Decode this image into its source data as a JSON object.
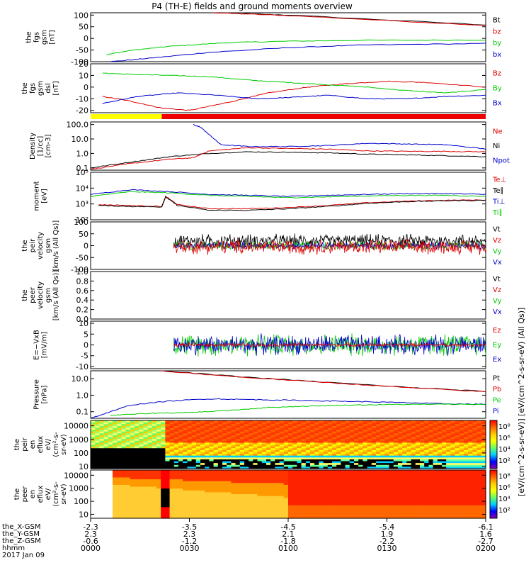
{
  "title": "P4 (TH-E) fields and ground moments overview",
  "chart_data": [
    {
      "type": "line",
      "id": "fgs_gsm",
      "ylabel": [
        "the",
        "fgs",
        "gsm",
        "[nT]"
      ],
      "yticks": [
        100,
        50,
        0,
        -50,
        -100
      ],
      "ylim": [
        -100,
        110
      ],
      "legend": [
        {
          "name": "Bt",
          "color": "#000000"
        },
        {
          "name": "bz",
          "color": "#dd0000"
        },
        {
          "name": "by",
          "color": "#00cc00"
        },
        {
          "name": "bx",
          "color": "#0000cc"
        }
      ],
      "series": [
        {
          "name": "Bt",
          "color": "#000000",
          "x": [
            0.31,
            0.5,
            1.0
          ],
          "y": [
            110,
            100,
            58
          ]
        },
        {
          "name": "bz",
          "color": "#dd0000",
          "x": [
            0.31,
            0.5,
            1.0
          ],
          "y": [
            110,
            98,
            56
          ]
        },
        {
          "name": "by",
          "color": "#00cc00",
          "x": [
            0.04,
            0.1,
            0.2,
            0.35,
            0.5,
            0.7,
            1.0
          ],
          "y": [
            -70,
            -52,
            -34,
            -18,
            -12,
            -8,
            -7
          ]
        },
        {
          "name": "bx",
          "color": "#0000cc",
          "x": [
            0.05,
            0.15,
            0.3,
            0.5,
            0.7,
            1.0
          ],
          "y": [
            -100,
            -85,
            -60,
            -40,
            -28,
            -22
          ]
        }
      ]
    },
    {
      "type": "line",
      "id": "fgs_dsl",
      "ylabel": [
        "the",
        "fgs",
        "gsm",
        "dsl",
        "[nT]"
      ],
      "yticks": [
        20,
        10,
        0,
        -10,
        -20
      ],
      "ylim": [
        -22,
        20
      ],
      "legend": [
        {
          "name": "Bz",
          "color": "#dd0000"
        },
        {
          "name": "By",
          "color": "#00cc00"
        },
        {
          "name": "Bx",
          "color": "#0000cc"
        }
      ],
      "series": [
        {
          "name": "Bz",
          "color": "#dd0000",
          "x": [
            0.03,
            0.1,
            0.18,
            0.25,
            0.35,
            0.45,
            0.55,
            0.65,
            0.75,
            0.85,
            1.0
          ],
          "y": [
            -8,
            -12,
            -18,
            -20,
            -13,
            -5,
            0,
            3,
            5,
            4,
            0
          ]
        },
        {
          "name": "By",
          "color": "#00cc00",
          "x": [
            0.03,
            0.1,
            0.2,
            0.3,
            0.4,
            0.5,
            0.6,
            0.7,
            0.8,
            0.9,
            1.0
          ],
          "y": [
            12,
            11,
            10,
            9,
            6,
            4,
            2,
            0,
            -3,
            -5,
            -2
          ]
        },
        {
          "name": "Bx",
          "color": "#0000cc",
          "x": [
            0.03,
            0.12,
            0.22,
            0.32,
            0.42,
            0.5,
            0.6,
            0.7,
            0.8,
            0.9,
            1.0
          ],
          "y": [
            -14,
            -8,
            -5,
            -7,
            -10,
            -9,
            -7,
            -10,
            -10,
            -8,
            -7
          ]
        }
      ]
    },
    {
      "type": "bar",
      "id": "mode_bar",
      "segments": [
        {
          "to": 0.18,
          "color": "#ffff00"
        },
        {
          "to": 1.0,
          "color": "#ee0000"
        }
      ]
    },
    {
      "type": "line",
      "id": "density",
      "log": true,
      "ylabel": [
        "Density",
        "[1/cc]",
        "[cm-3]"
      ],
      "yticks": [
        100.0,
        10.0,
        1.0,
        0.1
      ],
      "ytick_labels": [
        "100.0",
        "10.0",
        "1.0",
        "0.1"
      ],
      "ylim": [
        0.07,
        150
      ],
      "legend": [
        {
          "name": "Ne",
          "color": "#dd0000"
        },
        {
          "name": "Ni",
          "color": "#000000"
        },
        {
          "name": "Npot",
          "color": "#0000cc"
        }
      ],
      "series": [
        {
          "name": "Ni",
          "color": "#000000",
          "x": [
            0.0,
            0.1,
            0.2,
            0.3,
            0.4,
            0.5,
            0.6,
            0.7,
            0.8,
            0.9,
            1.0
          ],
          "y": [
            0.1,
            0.25,
            0.6,
            1.0,
            1.3,
            1.2,
            1.1,
            0.9,
            0.8,
            0.7,
            0.6
          ]
        },
        {
          "name": "Ne",
          "color": "#dd0000",
          "x": [
            0.0,
            0.1,
            0.2,
            0.26,
            0.3,
            0.4,
            0.5,
            0.6,
            0.7,
            0.8,
            0.9,
            1.0
          ],
          "y": [
            0.08,
            0.2,
            0.4,
            0.5,
            1.5,
            2.5,
            2.2,
            2.0,
            1.5,
            1.4,
            1.4,
            1.3
          ]
        },
        {
          "name": "Npot",
          "color": "#0000cc",
          "x": [
            0.26,
            0.28,
            0.3,
            0.33,
            0.4,
            0.5,
            0.6,
            0.7,
            0.8,
            0.9,
            1.0
          ],
          "y": [
            100,
            60,
            20,
            4,
            3,
            3,
            3.5,
            5,
            4.5,
            4,
            2
          ]
        }
      ]
    },
    {
      "type": "line",
      "id": "temperature",
      "log": true,
      "ylabel": [
        "moment",
        "[eV]"
      ],
      "yticks": [
        100000,
        10000,
        1000,
        100
      ],
      "ytick_labels": [
        "10⁵",
        "10⁴",
        "10³",
        "10²"
      ],
      "ylim": [
        100,
        100000
      ],
      "legend": [
        {
          "name": "Te⊥",
          "color": "#dd0000"
        },
        {
          "name": "Te∥",
          "color": "#000000"
        },
        {
          "name": "Ti⊥",
          "color": "#0000cc"
        },
        {
          "name": "Ti∥",
          "color": "#00cc00"
        }
      ],
      "series": [
        {
          "name": "Ti⊥",
          "color": "#0000cc",
          "x": [
            0.0,
            0.1,
            0.2,
            0.3,
            0.4,
            0.5,
            0.6,
            0.7,
            0.8,
            0.9,
            1.0
          ],
          "y": [
            4000,
            8000,
            6000,
            4000,
            3500,
            3000,
            3500,
            4000,
            4500,
            4500,
            4000
          ]
        },
        {
          "name": "Ti∥",
          "color": "#00cc00",
          "x": [
            0.0,
            0.1,
            0.2,
            0.3,
            0.4,
            0.5,
            0.6,
            0.7,
            0.8,
            0.9,
            1.0
          ],
          "y": [
            3000,
            6000,
            5000,
            3500,
            3000,
            2500,
            2800,
            3200,
            3500,
            3500,
            3000
          ]
        },
        {
          "name": "Te⊥",
          "color": "#dd0000",
          "x": [
            0.02,
            0.1,
            0.18,
            0.19,
            0.22,
            0.3,
            0.4,
            0.5,
            0.6,
            0.7,
            0.8,
            0.9,
            1.0
          ],
          "y": [
            900,
            800,
            700,
            3000,
            900,
            500,
            500,
            600,
            800,
            1200,
            1500,
            1700,
            1800
          ]
        },
        {
          "name": "Te∥",
          "color": "#000000",
          "x": [
            0.02,
            0.1,
            0.18,
            0.19,
            0.22,
            0.3,
            0.4,
            0.5,
            0.6,
            0.7,
            0.8,
            0.9,
            1.0
          ],
          "y": [
            800,
            700,
            650,
            2800,
            800,
            400,
            400,
            500,
            700,
            1100,
            1400,
            1600,
            1700
          ]
        }
      ]
    },
    {
      "type": "line",
      "id": "peir_velocity",
      "ylabel": [
        "the",
        "peir",
        "velocity",
        "gsm",
        "[km/s (All Qs)]"
      ],
      "yticks": [
        100,
        50,
        0,
        -50,
        -100
      ],
      "ylim": [
        -100,
        100
      ],
      "legend": [
        {
          "name": "Vt",
          "color": "#000000"
        },
        {
          "name": "Vz",
          "color": "#dd0000"
        },
        {
          "name": "Vy",
          "color": "#00cc00"
        },
        {
          "name": "Vx",
          "color": "#0000cc"
        }
      ],
      "noise": [
        {
          "name": "Vt",
          "color": "#000000",
          "from": 0.21,
          "to": 1.0,
          "center": 20,
          "amp": 28
        },
        {
          "name": "Vy",
          "color": "#00cc00",
          "from": 0.21,
          "to": 1.0,
          "center": 0,
          "amp": 18
        },
        {
          "name": "Vx",
          "color": "#0000cc",
          "from": 0.21,
          "to": 1.0,
          "center": 0,
          "amp": 14
        },
        {
          "name": "Vz",
          "color": "#dd0000",
          "from": 0.21,
          "to": 1.0,
          "center": -5,
          "amp": 30
        }
      ]
    },
    {
      "type": "line",
      "id": "peer_velocity",
      "ylabel": [
        "the",
        "peer",
        "velocity",
        "gsm",
        "[km/s (All Qs)]"
      ],
      "yticks": [
        1.0,
        0.8,
        0.6,
        0.4,
        0.2,
        0.0
      ],
      "ytick_labels": [
        "1.0",
        "0.8",
        "0.6",
        "0.4",
        "0.2",
        "0.0"
      ],
      "ylim": [
        0,
        1
      ],
      "legend": [
        {
          "name": "Vt",
          "color": "#000000"
        },
        {
          "name": "Vz",
          "color": "#dd0000"
        },
        {
          "name": "Vy",
          "color": "#00cc00"
        },
        {
          "name": "Vx",
          "color": "#0000cc"
        }
      ],
      "series": []
    },
    {
      "type": "line",
      "id": "efield",
      "ylabel": [
        "E=−VxB",
        "[mV/m]"
      ],
      "yticks": [
        10,
        5,
        0,
        -5,
        -10
      ],
      "ylim": [
        -11,
        11
      ],
      "legend": [
        {
          "name": "Ez",
          "color": "#dd0000"
        },
        {
          "name": "Ey",
          "color": "#00cc00"
        },
        {
          "name": "Ex",
          "color": "#0000cc"
        }
      ],
      "noise": [
        {
          "name": "Ey",
          "color": "#00cc00",
          "from": 0.21,
          "to": 1.0,
          "center": 0,
          "amp": 5
        },
        {
          "name": "Ex",
          "color": "#0000cc",
          "from": 0.21,
          "to": 1.0,
          "center": 0,
          "amp": 4.5
        },
        {
          "name": "Ez",
          "color": "#dd0000",
          "from": 0.21,
          "to": 1.0,
          "center": 0,
          "amp": 0.8
        }
      ]
    },
    {
      "type": "line",
      "id": "pressure",
      "log": true,
      "ylabel": [
        "Pressure",
        "[nPa]"
      ],
      "yticks": [
        10.0,
        1.0,
        0.1
      ],
      "ytick_labels": [
        "10.0",
        "1.0",
        "0.1"
      ],
      "ylim": [
        0.04,
        30
      ],
      "legend": [
        {
          "name": "Pt",
          "color": "#000000"
        },
        {
          "name": "Pb",
          "color": "#dd0000"
        },
        {
          "name": "Pe",
          "color": "#00cc00"
        },
        {
          "name": "Pi",
          "color": "#0000cc"
        }
      ],
      "series": [
        {
          "name": "Pt",
          "color": "#000000",
          "x": [
            0.18,
            0.4,
            0.6,
            0.8,
            1.0
          ],
          "y": [
            30,
            12,
            6,
            3,
            1.7
          ]
        },
        {
          "name": "Pb",
          "color": "#dd0000",
          "x": [
            0.18,
            0.4,
            0.6,
            0.8,
            1.0
          ],
          "y": [
            29,
            11.5,
            5.8,
            2.9,
            1.6
          ]
        },
        {
          "name": "Pi",
          "color": "#0000cc",
          "x": [
            0.0,
            0.05,
            0.1,
            0.2,
            0.3,
            0.4,
            0.5,
            0.6,
            0.7,
            0.8,
            0.9,
            1.0
          ],
          "y": [
            0.04,
            0.1,
            0.25,
            0.45,
            0.6,
            0.55,
            0.5,
            0.45,
            0.4,
            0.35,
            0.3,
            0.28
          ]
        },
        {
          "name": "Pe",
          "color": "#00cc00",
          "x": [
            0.05,
            0.15,
            0.25,
            0.35,
            0.45,
            0.55,
            0.65,
            0.75,
            0.85,
            1.0
          ],
          "y": [
            0.06,
            0.08,
            0.09,
            0.12,
            0.18,
            0.22,
            0.25,
            0.27,
            0.28,
            0.28
          ]
        }
      ]
    },
    {
      "type": "heatmap",
      "id": "peir_eflux",
      "log": true,
      "ylabel": [
        "the",
        "peir",
        "en",
        "eflux",
        "eV/",
        "(cm²-s-",
        "sr-eV)"
      ],
      "yticks": [
        10000,
        1000,
        100,
        10
      ],
      "ytick_labels": [
        "10000",
        "1000",
        "100",
        "10"
      ],
      "ylim": [
        7,
        25000
      ]
    },
    {
      "type": "heatmap",
      "id": "peer_eflux",
      "log": true,
      "ylabel": [
        "the",
        "peer",
        "en",
        "eflux",
        "eV/",
        "(cm²-s-",
        "sr-eV)"
      ],
      "yticks": [
        10000,
        1000,
        100,
        10
      ],
      "ytick_labels": [
        "10000",
        "1000",
        "100",
        "10"
      ],
      "ylim": [
        5,
        25000
      ]
    }
  ],
  "colorbar": {
    "label": "[eV/(cm^2-s-sr-eV)] [eV/(cm^2-s-sr-eV) (All Qs)]",
    "ticks_top": [
      "10⁸",
      "10⁶",
      "10⁴",
      "10²"
    ],
    "ticks_bottom": [
      "10⁸",
      "10⁶",
      "10⁴",
      "10²"
    ],
    "colors": [
      "#ff0000",
      "#ff6600",
      "#ffcc00",
      "#ffff00",
      "#66ff66",
      "#00ccff",
      "#0000ff",
      "#8800aa"
    ]
  },
  "time_axis": {
    "row_labels": [
      "the_X-GSM",
      "the_Y-GSM",
      "the_Z-GSM",
      "hhmm",
      "2017 Jan 09"
    ],
    "columns": [
      {
        "x": 0.0,
        "values": [
          "-2.3",
          "2.3",
          "-0.6",
          "0000"
        ]
      },
      {
        "x": 0.25,
        "values": [
          "-3.5",
          "2.3",
          "-1.2",
          "0030"
        ]
      },
      {
        "x": 0.5,
        "values": [
          "-4.5",
          "2.1",
          "-1.8",
          "0100"
        ]
      },
      {
        "x": 0.75,
        "values": [
          "-5.4",
          "1.9",
          "-2.2",
          "0130"
        ]
      },
      {
        "x": 1.0,
        "values": [
          "-6.1",
          "1.6",
          "-2.7",
          "0200"
        ]
      }
    ]
  }
}
